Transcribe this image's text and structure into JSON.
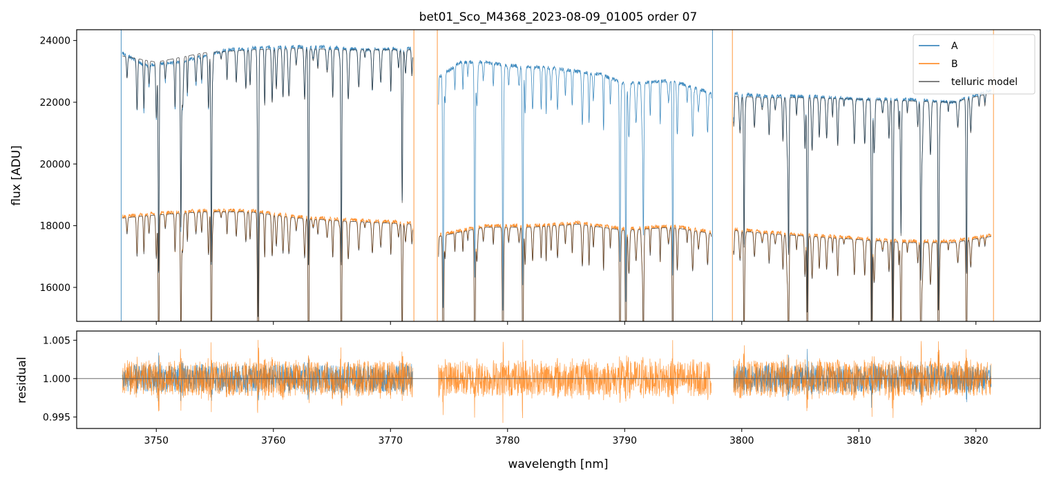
{
  "chart_data": [
    {
      "type": "line",
      "title": "bet01_Sco_M4368_2023-08-09_01005  order 07",
      "xlabel": "",
      "ylabel": "flux [ADU]",
      "xlim": [
        3743.2,
        3825.5
      ],
      "ylim": [
        14900,
        24350
      ],
      "yticks": [
        16000,
        18000,
        20000,
        22000,
        24000
      ],
      "ytick_labels": [
        "16000",
        "18000",
        "20000",
        "22000",
        "24000"
      ],
      "xticks": [
        3750,
        3760,
        3770,
        3780,
        3790,
        3800,
        3810,
        3820
      ],
      "legend": {
        "position": "top-right",
        "entries": [
          {
            "label": "A",
            "color": "#1f77b4"
          },
          {
            "label": "B",
            "color": "#ff7f0e"
          },
          {
            "label": "telluric model",
            "color": "#555555"
          }
        ]
      },
      "segment_bounds": [
        3747.0,
        3772.0,
        3774.0,
        3797.5,
        3799.2,
        3821.5
      ],
      "series": [
        {
          "name": "A",
          "color": "#1f77b4",
          "segments": [
            {
              "x": [
                3747.1,
                3749,
                3752,
                3756,
                3760,
                3764,
                3768,
                3771.9
              ],
              "y": [
                23600,
                23200,
                23300,
                23700,
                23800,
                23800,
                23700,
                23750
              ]
            },
            {
              "x": [
                3774.1,
                3776,
                3778,
                3780,
                3784,
                3788,
                3790,
                3794,
                3797.4
              ],
              "y": [
                22800,
                23300,
                23300,
                23200,
                23100,
                22900,
                22600,
                22700,
                22300
              ]
            },
            {
              "x": [
                3799.3,
                3802,
                3806,
                3810,
                3814,
                3818,
                3821.3
              ],
              "y": [
                22300,
                22200,
                22200,
                22100,
                22100,
                22000,
                22400
              ]
            }
          ]
        },
        {
          "name": "B",
          "color": "#ff7f0e",
          "segments": [
            {
              "x": [
                3747.1,
                3750,
                3754,
                3758,
                3762,
                3766,
                3771.9
              ],
              "y": [
                18300,
                18400,
                18500,
                18500,
                18300,
                18200,
                18100
              ]
            },
            {
              "x": [
                3774.1,
                3778,
                3782,
                3786,
                3790,
                3794,
                3797.4
              ],
              "y": [
                17700,
                18000,
                18000,
                18100,
                17900,
                18000,
                17800
              ]
            },
            {
              "x": [
                3799.3,
                3802,
                3806,
                3810,
                3814,
                3818,
                3821.3
              ],
              "y": [
                17900,
                17800,
                17700,
                17600,
                17500,
                17500,
                17700
              ]
            }
          ]
        },
        {
          "name": "telluric model",
          "color": "#555555",
          "segments": [
            {
              "x": [
                3747.1,
                3750,
                3754,
                3758,
                3762,
                3766,
                3771.9
              ],
              "y": [
                23500,
                23300,
                23600,
                23700,
                23750,
                23700,
                23700
              ]
            },
            {
              "x": [
                3799.3,
                3802,
                3806,
                3810,
                3814,
                3818,
                3821.3
              ],
              "y": [
                22200,
                22150,
                22150,
                22100,
                22050,
                22000,
                22300
              ]
            },
            {
              "x": [
                3747.1,
                3750,
                3754,
                3758,
                3762,
                3766,
                3771.9
              ],
              "y": [
                18250,
                18350,
                18450,
                18450,
                18250,
                18150,
                18050
              ]
            },
            {
              "x": [
                3774.1,
                3778,
                3782,
                3786,
                3790,
                3794,
                3797.4
              ],
              "y": [
                17650,
                17950,
                17950,
                18050,
                17850,
                17950,
                17750
              ]
            },
            {
              "x": [
                3799.3,
                3802,
                3806,
                3810,
                3814,
                3818,
                3821.3
              ],
              "y": [
                17850,
                17750,
                17650,
                17550,
                17450,
                17450,
                17650
              ]
            }
          ]
        }
      ]
    },
    {
      "type": "line",
      "title": "",
      "xlabel": "wavelength [nm]",
      "ylabel": "residual",
      "xlim": [
        3743.2,
        3825.5
      ],
      "ylim": [
        0.9935,
        1.0062
      ],
      "yticks": [
        0.995,
        1.0,
        1.005
      ],
      "ytick_labels": [
        "0.995",
        "1.000",
        "1.005"
      ],
      "xticks": [
        3750,
        3760,
        3770,
        3780,
        3790,
        3800,
        3810,
        3820
      ],
      "xtick_labels": [
        "3750",
        "3760",
        "3770",
        "3780",
        "3790",
        "3800",
        "3810",
        "3820"
      ],
      "reference_line": 1.0,
      "series": [
        {
          "name": "A",
          "color": "#1f77b4",
          "segments": [
            {
              "x": [
                3747.1,
                3750,
                3760,
                3771.9
              ],
              "y": [
                1.0,
                1.0,
                1.0,
                1.0
              ]
            },
            {
              "x": [
                3799.3,
                3810,
                3821.3
              ],
              "y": [
                1.0,
                1.0,
                1.0
              ]
            }
          ]
        },
        {
          "name": "B",
          "color": "#ff7f0e",
          "segments": [
            {
              "x": [
                3747.1,
                3760,
                3771.9
              ],
              "y": [
                1.0,
                1.0,
                1.0
              ]
            },
            {
              "x": [
                3774.1,
                3785,
                3797.4
              ],
              "y": [
                1.0,
                1.0,
                1.0
              ]
            },
            {
              "x": [
                3799.3,
                3810,
                3821.3
              ],
              "y": [
                1.0,
                1.0,
                1.0
              ]
            }
          ]
        }
      ]
    }
  ]
}
